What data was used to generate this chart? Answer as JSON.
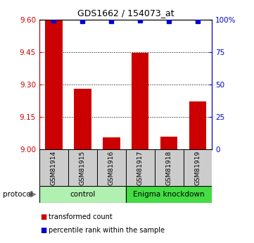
{
  "title": "GDS1662 / 154073_at",
  "samples": [
    "GSM81914",
    "GSM81915",
    "GSM81916",
    "GSM81917",
    "GSM81918",
    "GSM81919"
  ],
  "red_values": [
    9.595,
    9.28,
    9.055,
    9.445,
    9.058,
    9.22
  ],
  "blue_values": [
    99.0,
    98.5,
    98.5,
    99.0,
    98.5,
    98.5
  ],
  "ylim_left": [
    9.0,
    9.6
  ],
  "ylim_right": [
    0,
    100
  ],
  "yticks_left": [
    9.0,
    9.15,
    9.3,
    9.45,
    9.6
  ],
  "yticks_right": [
    0,
    25,
    50,
    75,
    100
  ],
  "ytick_labels_right": [
    "0",
    "25",
    "50",
    "75",
    "100%"
  ],
  "bar_color": "#cc0000",
  "dot_color": "#0000cc",
  "bar_width": 0.6,
  "groups": [
    {
      "label": "control",
      "start": 0,
      "end": 3,
      "color": "#b0f0b0"
    },
    {
      "label": "Enigma knockdown",
      "start": 3,
      "end": 6,
      "color": "#44dd44"
    }
  ],
  "protocol_label": "protocol",
  "legend_items": [
    {
      "color": "#cc0000",
      "label": "transformed count"
    },
    {
      "color": "#0000cc",
      "label": "percentile rank within the sample"
    }
  ],
  "left_axis_color": "#cc0000",
  "right_axis_color": "#0000cc",
  "grid_dotted_ticks": [
    9.15,
    9.3,
    9.45
  ]
}
